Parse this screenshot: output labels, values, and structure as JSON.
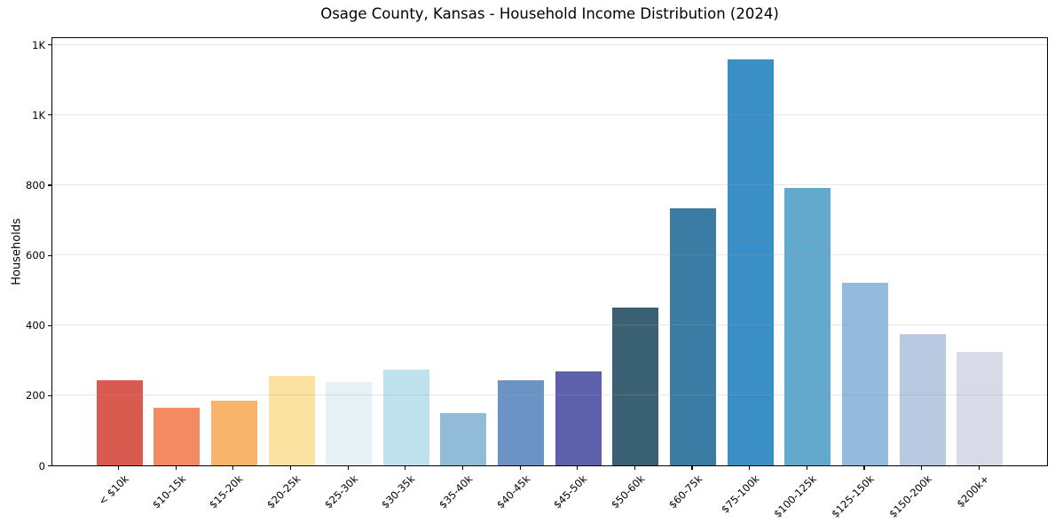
{
  "chart_data": {
    "type": "bar",
    "title": "Osage County, Kansas - Household Income Distribution (2024)",
    "xlabel": "",
    "ylabel": "Households",
    "categories": [
      "< $10k",
      "$10-15k",
      "$15-20k",
      "$20-25k",
      "$25-30k",
      "$30-35k",
      "$35-40k",
      "$40-45k",
      "$45-50k",
      "$50-60k",
      "$60-75k",
      "$75-100k",
      "$100-125k",
      "$125-150k",
      "$150-200k",
      "$200k+"
    ],
    "values": [
      243,
      164,
      185,
      255,
      237,
      272,
      150,
      242,
      268,
      451,
      734,
      1157,
      792,
      521,
      375,
      323
    ],
    "bar_colors": [
      "#d95b50",
      "#f38a62",
      "#f9b46c",
      "#fce2a0",
      "#e6f1f6",
      "#c0e1ee",
      "#92bbd8",
      "#6c93c5",
      "#5d60ab",
      "#3a6173",
      "#3b7ca5",
      "#3a90c6",
      "#63a8cd",
      "#94bbdd",
      "#bac9e2",
      "#d9dae8"
    ],
    "ylim": [
      0,
      1222
    ],
    "yticks": [
      {
        "value": 0,
        "label": "0"
      },
      {
        "value": 200,
        "label": "200"
      },
      {
        "value": 400,
        "label": "400"
      },
      {
        "value": 600,
        "label": "600"
      },
      {
        "value": 800,
        "label": "800"
      },
      {
        "value": 1000,
        "label": "1K"
      },
      {
        "value": 1200,
        "label": "1K"
      }
    ],
    "x_tick_rotation_deg": 45,
    "grid": "horizontal",
    "legend_position": "none"
  },
  "colors": {
    "background": "#ffffff",
    "spine": "#000000",
    "grid": "#e9e9e9",
    "text": "#1a1a1a"
  }
}
